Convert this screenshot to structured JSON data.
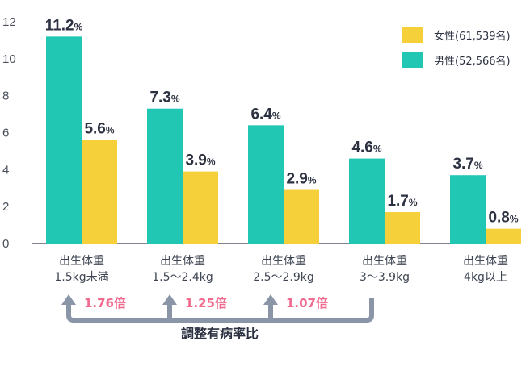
{
  "chart_data": {
    "type": "bar",
    "categories": [
      [
        "出生体重",
        "1.5kg未満"
      ],
      [
        "出生体重",
        "1.5～2.4kg"
      ],
      [
        "出生体重",
        "2.5～2.9kg"
      ],
      [
        "出生体重",
        "3～3.9kg"
      ],
      [
        "出生体重",
        "4kg以上"
      ]
    ],
    "series": [
      {
        "name": "男性(52,566名)",
        "color": "#22c7b4",
        "values": [
          11.2,
          7.3,
          6.4,
          4.6,
          3.7
        ]
      },
      {
        "name": "女性(61,539名)",
        "color": "#f5d03a",
        "values": [
          5.6,
          3.9,
          2.9,
          1.7,
          0.8
        ]
      }
    ],
    "legend_order": [
      "女性(61,539名)",
      "男性(52,566名)"
    ],
    "value_unit": "%",
    "ylim": [
      0,
      12
    ],
    "yticks": [
      0,
      2,
      4,
      6,
      8,
      10,
      12
    ],
    "grid": false,
    "legend_position": "top-right",
    "title": "",
    "xlabel": "",
    "ylabel": "",
    "annotations": {
      "ratios": [
        "1.76倍",
        "1.25倍",
        "1.07倍"
      ],
      "ratio_color": "#f06a8e",
      "bracket_label": "調整有病率比",
      "bracket_color": "#8a96a8"
    }
  }
}
